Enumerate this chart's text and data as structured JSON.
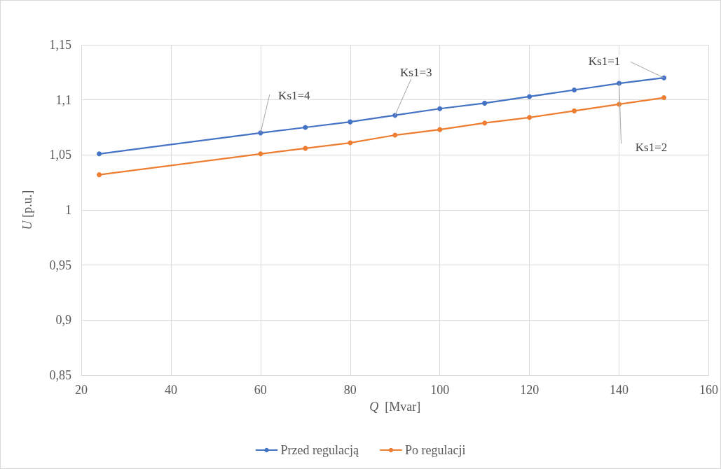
{
  "chart_data": {
    "type": "line",
    "xlabel": "Q  [Mvar]",
    "ylabel": "U [p.u.]",
    "x": [
      24,
      60,
      70,
      80,
      90,
      100,
      110,
      120,
      130,
      140,
      150
    ],
    "series": [
      {
        "name": "Przed regulacją",
        "color": "#4472c4",
        "values": [
          1.051,
          1.07,
          1.075,
          1.08,
          1.086,
          1.092,
          1.097,
          1.103,
          1.109,
          1.115,
          1.12
        ]
      },
      {
        "name": "Po regulacji",
        "color": "#ed7d31",
        "values": [
          1.032,
          1.051,
          1.056,
          1.061,
          1.068,
          1.073,
          1.079,
          1.084,
          1.09,
          1.096,
          1.102
        ]
      }
    ],
    "xlim": [
      20,
      160
    ],
    "xticks": [
      20,
      40,
      60,
      80,
      100,
      120,
      140,
      160
    ],
    "ylim": [
      0.85,
      1.15
    ],
    "yticks": [
      {
        "value": 0.85,
        "label": "0,85"
      },
      {
        "value": 0.9,
        "label": "0,9"
      },
      {
        "value": 0.95,
        "label": "0,95"
      },
      {
        "value": 1,
        "label": "1"
      },
      {
        "value": 1.05,
        "label": "1,05"
      },
      {
        "value": 1.1,
        "label": "1,1"
      },
      {
        "value": 1.15,
        "label": "1,15"
      }
    ],
    "annotations": [
      {
        "text": "Ks1=4",
        "x": 60,
        "y": 1.07
      },
      {
        "text": "Ks1=3",
        "x": 90,
        "y": 1.086
      },
      {
        "text": "Ks1=1",
        "x": 150,
        "y": 1.12
      },
      {
        "text": "Ks1=2",
        "x": 140,
        "y": 1.115
      }
    ],
    "grid": true,
    "legend": "bottom",
    "marker": "circle",
    "line_style": "solid"
  }
}
